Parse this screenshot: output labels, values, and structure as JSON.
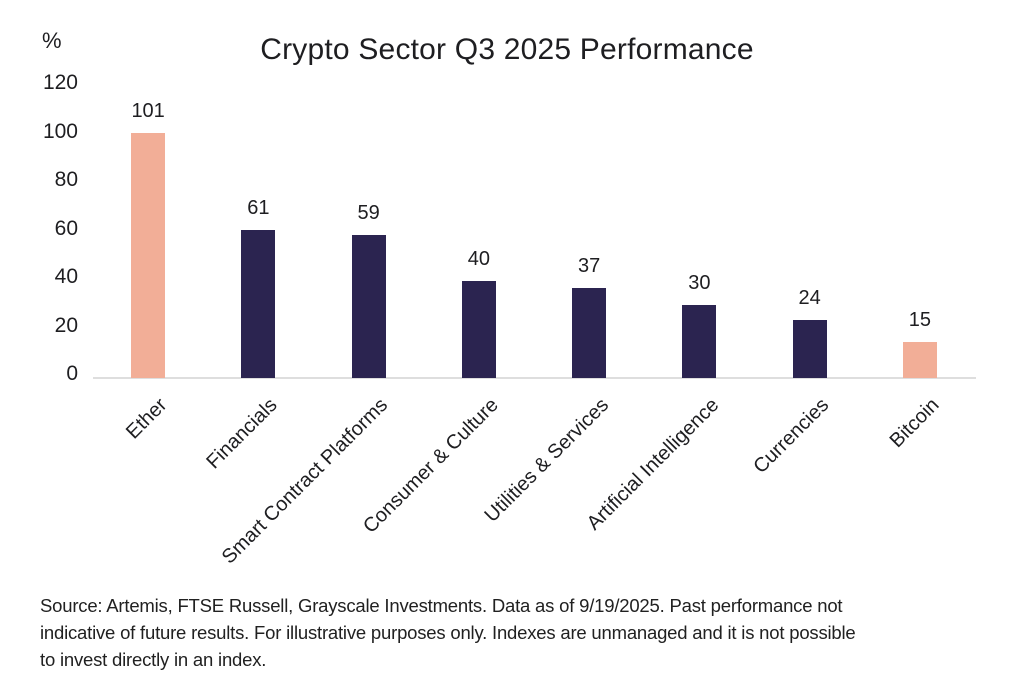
{
  "chart_data": {
    "type": "bar",
    "title": "Crypto Sector Q3 2025 Performance",
    "ylabel": "%",
    "xlabel": "",
    "ylim": [
      0,
      120
    ],
    "yticks": [
      120,
      100,
      80,
      60,
      40,
      20,
      0
    ],
    "grid": false,
    "legend": false,
    "categories": [
      "Ether",
      "Financials",
      "Smart Contract Platforms",
      "Consumer & Culture",
      "Utilities & Services",
      "Artificial Intelligence",
      "Currencies",
      "Bitcoin"
    ],
    "values": [
      101,
      61,
      59,
      40,
      37,
      30,
      24,
      15
    ],
    "bar_colors": [
      "#f2ae97",
      "#2b2450",
      "#2b2450",
      "#2b2450",
      "#2b2450",
      "#2b2450",
      "#2b2450",
      "#f2ae97"
    ],
    "colors": {
      "highlight": "#f2ae97",
      "default_bar": "#2b2450",
      "axis_line": "#dedede",
      "text": "#1e1e21"
    }
  },
  "footer": {
    "lines": [
      "Source: Artemis, FTSE Russell, Grayscale Investments. Data as of 9/19/2025. Past performance not",
      "indicative of future results. For illustrative purposes only. Indexes are unmanaged and it is not possible",
      "to invest directly in an index."
    ]
  }
}
